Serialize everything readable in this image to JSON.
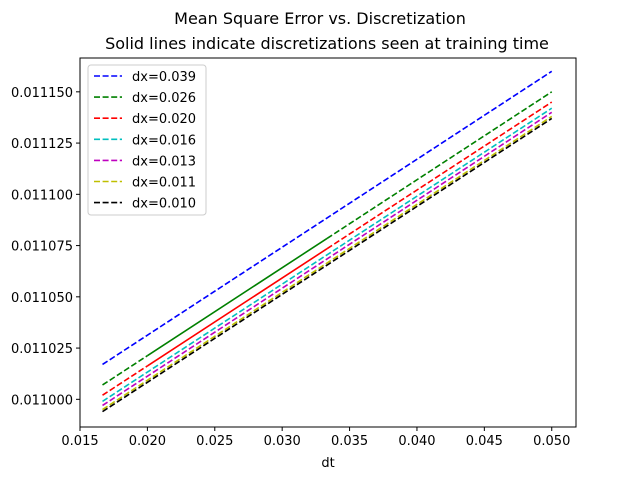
{
  "chart_data": {
    "type": "line",
    "title": "Mean Square Error vs. Discretization",
    "subtitle": "Solid lines indicate discretizations seen at training time",
    "xlabel": "dt",
    "ylabel": "",
    "xlim": [
      0.015,
      0.0518
    ],
    "ylim": [
      0.0109865,
      0.0111665
    ],
    "x_ticks": [
      0.015,
      0.02,
      0.025,
      0.03,
      0.035,
      0.04,
      0.045,
      0.05
    ],
    "x_tick_labels": [
      "0.015",
      "0.020",
      "0.025",
      "0.030",
      "0.035",
      "0.040",
      "0.045",
      "0.050"
    ],
    "y_ticks": [
      0.011,
      0.011025,
      0.01105,
      0.011075,
      0.0111,
      0.011125,
      0.01115
    ],
    "y_tick_labels": [
      "0.011000",
      "0.011025",
      "0.011050",
      "0.011075",
      "0.011100",
      "0.011125",
      "0.011150"
    ],
    "grid": false,
    "legend_position": "top-left",
    "series": [
      {
        "name": "dx=0.039",
        "color": "#0000ff",
        "x": [
          0.01667,
          0.05
        ],
        "y": [
          0.011017,
          0.01116
        ],
        "solid_range": null
      },
      {
        "name": "dx=0.026",
        "color": "#008000",
        "x": [
          0.01667,
          0.05
        ],
        "y": [
          0.011007,
          0.01115
        ],
        "solid_range": [
          0.02,
          0.03333
        ]
      },
      {
        "name": "dx=0.020",
        "color": "#ff0000",
        "x": [
          0.01667,
          0.05
        ],
        "y": [
          0.011002,
          0.011145
        ],
        "solid_range": [
          0.02,
          0.03333
        ]
      },
      {
        "name": "dx=0.016",
        "color": "#00bfbf",
        "x": [
          0.01667,
          0.05
        ],
        "y": [
          0.010999,
          0.011142
        ],
        "solid_range": null
      },
      {
        "name": "dx=0.013",
        "color": "#bf00bf",
        "x": [
          0.01667,
          0.05
        ],
        "y": [
          0.010997,
          0.01114
        ],
        "solid_range": null
      },
      {
        "name": "dx=0.011",
        "color": "#bfbf00",
        "x": [
          0.01667,
          0.05
        ],
        "y": [
          0.010995,
          0.011138
        ],
        "solid_range": null
      },
      {
        "name": "dx=0.010",
        "color": "#000000",
        "x": [
          0.01667,
          0.05
        ],
        "y": [
          0.010994,
          0.011137
        ],
        "solid_range": null
      }
    ]
  }
}
